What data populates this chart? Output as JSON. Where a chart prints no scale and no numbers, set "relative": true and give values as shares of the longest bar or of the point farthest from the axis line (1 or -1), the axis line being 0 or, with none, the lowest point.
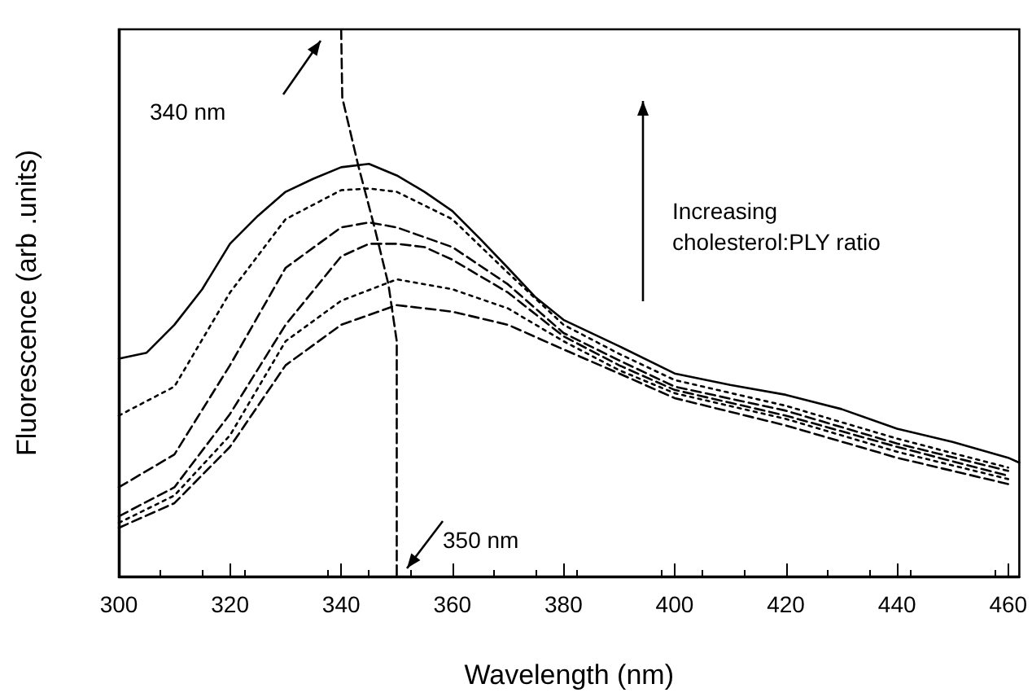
{
  "chart_data": {
    "type": "line",
    "relative": true,
    "xlabel": "Wavelength (nm)",
    "ylabel": "Fluorescence (arb .units)",
    "xlim": [
      300,
      462
    ],
    "xticks": [
      300,
      320,
      340,
      360,
      380,
      400,
      420,
      440,
      460
    ],
    "tick_labels": "x",
    "annotations": [
      "340 nm",
      "350 nm",
      "Increasing cholesterol:PLY ratio"
    ],
    "series": [
      {
        "color": "#000000",
        "line_style": "solid",
        "x": [
          300,
          305,
          310,
          315,
          320,
          325,
          330,
          335,
          340,
          345,
          350,
          355,
          360,
          365,
          370,
          375,
          380,
          390,
          400,
          410,
          420,
          430,
          440,
          450,
          460,
          462
        ],
        "values": [
          0.398,
          0.409,
          0.46,
          0.525,
          0.608,
          0.659,
          0.703,
          0.727,
          0.748,
          0.754,
          0.733,
          0.703,
          0.668,
          0.617,
          0.564,
          0.51,
          0.469,
          0.421,
          0.371,
          0.35,
          0.332,
          0.306,
          0.27,
          0.246,
          0.217,
          0.208
        ]
      },
      {
        "color": "#000000",
        "line_style": "dotted",
        "x": [
          300,
          310,
          320,
          330,
          340,
          345,
          350,
          360,
          370,
          380,
          390,
          400,
          420,
          440,
          460
        ],
        "values": [
          0.294,
          0.347,
          0.519,
          0.653,
          0.706,
          0.709,
          0.703,
          0.653,
          0.555,
          0.46,
          0.407,
          0.359,
          0.312,
          0.252,
          0.199
        ]
      },
      {
        "color": "#000000",
        "line_style": "dashed",
        "x": [
          300,
          310,
          320,
          330,
          340,
          345,
          350,
          360,
          370,
          380,
          390,
          400,
          420,
          440,
          460
        ],
        "values": [
          0.163,
          0.223,
          0.386,
          0.564,
          0.638,
          0.647,
          0.638,
          0.602,
          0.534,
          0.445,
          0.395,
          0.347,
          0.303,
          0.243,
          0.193
        ]
      },
      {
        "color": "#000000",
        "line_style": "dashed",
        "x": [
          300,
          310,
          320,
          330,
          340,
          345,
          350,
          355,
          360,
          370,
          380,
          390,
          400,
          420,
          440,
          460
        ],
        "values": [
          0.11,
          0.163,
          0.297,
          0.46,
          0.585,
          0.608,
          0.608,
          0.602,
          0.579,
          0.519,
          0.439,
          0.386,
          0.341,
          0.294,
          0.237,
          0.184
        ]
      },
      {
        "color": "#000000",
        "line_style": "dotted",
        "x": [
          300,
          310,
          320,
          330,
          340,
          350,
          360,
          370,
          380,
          390,
          400,
          420,
          440,
          460
        ],
        "values": [
          0.098,
          0.148,
          0.258,
          0.43,
          0.504,
          0.543,
          0.525,
          0.49,
          0.43,
          0.377,
          0.335,
          0.288,
          0.228,
          0.178
        ]
      },
      {
        "color": "#000000",
        "line_style": "dashed",
        "x": [
          300,
          310,
          320,
          330,
          340,
          350,
          360,
          370,
          380,
          390,
          400,
          420,
          440,
          460
        ],
        "values": [
          0.089,
          0.134,
          0.237,
          0.386,
          0.46,
          0.496,
          0.484,
          0.46,
          0.415,
          0.371,
          0.326,
          0.276,
          0.217,
          0.169
        ]
      },
      {
        "color": "#000000",
        "line_style": "dashed",
        "x": [
          340,
          340.2,
          343,
          346,
          348.5,
          350,
          350
        ],
        "values": [
          1,
          0.875,
          0.754,
          0.638,
          0.534,
          0.43,
          0
        ]
      }
    ]
  }
}
